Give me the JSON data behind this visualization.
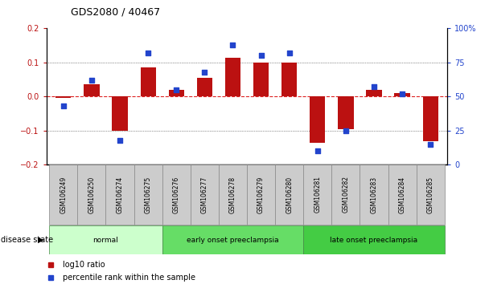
{
  "title": "GDS2080 / 40467",
  "samples": [
    "GSM106249",
    "GSM106250",
    "GSM106274",
    "GSM106275",
    "GSM106276",
    "GSM106277",
    "GSM106278",
    "GSM106279",
    "GSM106280",
    "GSM106281",
    "GSM106282",
    "GSM106283",
    "GSM106284",
    "GSM106285"
  ],
  "log10_ratio": [
    -0.005,
    0.035,
    -0.1,
    0.085,
    0.02,
    0.055,
    0.115,
    0.1,
    0.1,
    -0.135,
    -0.095,
    0.02,
    0.01,
    -0.13
  ],
  "percentile_rank": [
    43,
    62,
    18,
    82,
    55,
    68,
    88,
    80,
    82,
    10,
    25,
    57,
    52,
    15
  ],
  "groups": [
    {
      "label": "normal",
      "start": 0,
      "end": 3,
      "color": "#ccffcc"
    },
    {
      "label": "early onset preeclampsia",
      "start": 4,
      "end": 8,
      "color": "#66dd66"
    },
    {
      "label": "late onset preeclampsia",
      "start": 9,
      "end": 13,
      "color": "#44cc44"
    }
  ],
  "ylim_left": [
    -0.2,
    0.2
  ],
  "ylim_right": [
    0,
    100
  ],
  "yticks_left": [
    -0.2,
    -0.1,
    0,
    0.1,
    0.2
  ],
  "yticks_right": [
    0,
    25,
    50,
    75,
    100
  ],
  "bar_color": "#bb1111",
  "dot_color": "#2244cc",
  "zero_line_color": "#dd2222",
  "grid_color": "#333333",
  "legend_items": [
    "log10 ratio",
    "percentile rank within the sample"
  ],
  "figsize": [
    6.08,
    3.54
  ],
  "dpi": 100
}
